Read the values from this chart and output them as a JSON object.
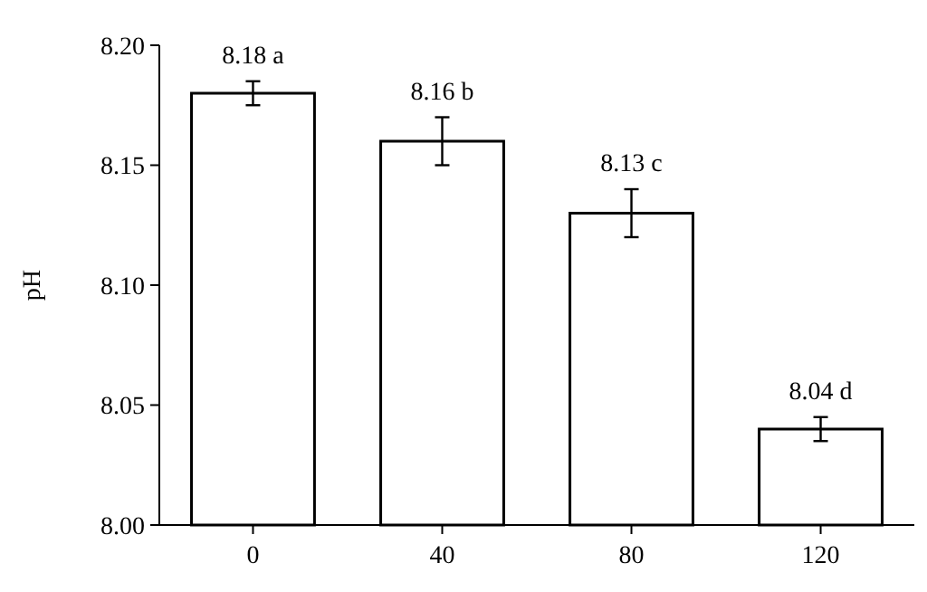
{
  "chart_data": {
    "type": "bar",
    "ylabel": "pH",
    "categories": [
      "0",
      "40",
      "80",
      "120"
    ],
    "values": [
      8.18,
      8.16,
      8.13,
      8.04
    ],
    "errors": [
      0.005,
      0.01,
      0.01,
      0.005
    ],
    "value_labels": [
      "8.18 a",
      "8.16 b",
      "8.13 c",
      "8.04 d"
    ],
    "color": "#ffffff",
    "ylim": [
      8.0,
      8.2
    ],
    "yticks": [
      {
        "value": 8.0,
        "label": "8.00"
      },
      {
        "value": 8.05,
        "label": "8.05"
      },
      {
        "value": 8.1,
        "label": "8.10"
      },
      {
        "value": 8.15,
        "label": "8.15"
      },
      {
        "value": 8.2,
        "label": "8.20"
      }
    ],
    "grid": false
  }
}
